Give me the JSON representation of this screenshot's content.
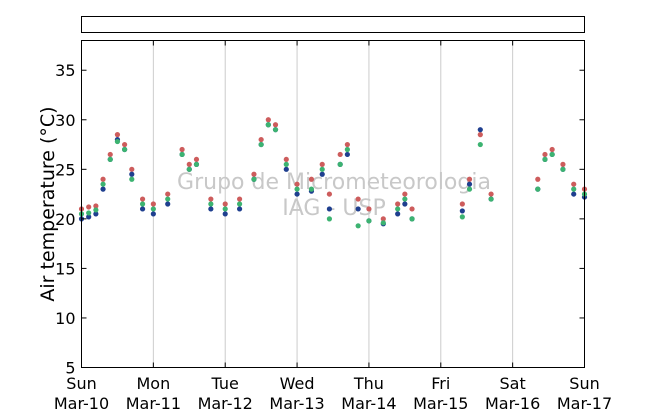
{
  "chart_data": {
    "type": "scatter",
    "ylabel": "Air temperature (°C)",
    "ylim": [
      5,
      38
    ],
    "yticks": [
      5,
      10,
      15,
      20,
      25,
      30,
      35
    ],
    "xlim": [
      0,
      7
    ],
    "xticks": [
      {
        "day": "Sun",
        "date": "Mar-10"
      },
      {
        "day": "Mon",
        "date": "Mar-11"
      },
      {
        "day": "Tue",
        "date": "Mar-12"
      },
      {
        "day": "Wed",
        "date": "Mar-13"
      },
      {
        "day": "Thu",
        "date": "Mar-14"
      },
      {
        "day": "Fri",
        "date": "Mar-15"
      },
      {
        "day": "Sat",
        "date": "Mar-16"
      },
      {
        "day": "Sun",
        "date": "Mar-17"
      }
    ],
    "vertical_grid": true,
    "watermark": [
      "Grupo de Micrometeorologia",
      "IAG - USP"
    ],
    "series": [
      {
        "color": "#cd5c5c",
        "values": [
          [
            0.0,
            21.0
          ],
          [
            0.1,
            21.2
          ],
          [
            0.2,
            21.3
          ],
          [
            0.3,
            24.0
          ],
          [
            0.4,
            26.5
          ],
          [
            0.5,
            28.5
          ],
          [
            0.6,
            27.5
          ],
          [
            0.7,
            25.0
          ],
          [
            0.85,
            22.0
          ],
          [
            1.0,
            21.5
          ],
          [
            1.2,
            22.5
          ],
          [
            1.4,
            27.0
          ],
          [
            1.5,
            25.5
          ],
          [
            1.6,
            26.0
          ],
          [
            1.8,
            22.0
          ],
          [
            2.0,
            21.5
          ],
          [
            2.2,
            22.0
          ],
          [
            2.4,
            24.5
          ],
          [
            2.5,
            28.0
          ],
          [
            2.6,
            30.0
          ],
          [
            2.7,
            29.5
          ],
          [
            2.85,
            26.0
          ],
          [
            3.0,
            23.5
          ],
          [
            3.2,
            24.0
          ],
          [
            3.35,
            25.5
          ],
          [
            3.45,
            22.5
          ],
          [
            3.6,
            26.5
          ],
          [
            3.7,
            27.5
          ],
          [
            3.85,
            22.0
          ],
          [
            4.0,
            21.0
          ],
          [
            4.2,
            20.0
          ],
          [
            4.4,
            21.5
          ],
          [
            4.5,
            22.5
          ],
          [
            4.6,
            21.0
          ],
          [
            5.3,
            21.5
          ],
          [
            5.4,
            24.0
          ],
          [
            5.55,
            28.5
          ],
          [
            5.7,
            22.5
          ],
          [
            6.35,
            24.0
          ],
          [
            6.45,
            26.5
          ],
          [
            6.55,
            27.0
          ],
          [
            6.7,
            25.5
          ],
          [
            6.85,
            23.5
          ],
          [
            7.0,
            23.0
          ]
        ]
      },
      {
        "color": "#1f3f8f",
        "values": [
          [
            0.0,
            20.0
          ],
          [
            0.1,
            20.2
          ],
          [
            0.2,
            20.5
          ],
          [
            0.3,
            23.0
          ],
          [
            0.4,
            26.0
          ],
          [
            0.5,
            28.0
          ],
          [
            0.6,
            27.0
          ],
          [
            0.7,
            24.5
          ],
          [
            0.85,
            21.0
          ],
          [
            1.0,
            20.5
          ],
          [
            1.2,
            21.5
          ],
          [
            1.4,
            26.5
          ],
          [
            1.5,
            25.0
          ],
          [
            1.6,
            25.5
          ],
          [
            1.8,
            21.0
          ],
          [
            2.0,
            20.5
          ],
          [
            2.2,
            21.0
          ],
          [
            2.4,
            24.0
          ],
          [
            2.5,
            27.5
          ],
          [
            2.6,
            29.5
          ],
          [
            2.7,
            29.0
          ],
          [
            2.85,
            25.0
          ],
          [
            3.0,
            22.5
          ],
          [
            3.2,
            22.8
          ],
          [
            3.35,
            24.5
          ],
          [
            3.45,
            21.0
          ],
          [
            3.6,
            25.5
          ],
          [
            3.7,
            26.5
          ],
          [
            3.85,
            21.0
          ],
          [
            4.0,
            19.8
          ],
          [
            4.2,
            19.5
          ],
          [
            4.4,
            20.5
          ],
          [
            4.5,
            21.5
          ],
          [
            4.6,
            20.0
          ],
          [
            5.3,
            20.8
          ],
          [
            5.4,
            23.5
          ],
          [
            5.55,
            29.0
          ],
          [
            5.7,
            22.0
          ],
          [
            6.35,
            23.0
          ],
          [
            6.45,
            26.0
          ],
          [
            6.55,
            26.5
          ],
          [
            6.7,
            25.0
          ],
          [
            6.85,
            22.5
          ],
          [
            7.0,
            22.2
          ]
        ]
      },
      {
        "color": "#3cb371",
        "values": [
          [
            0.0,
            20.5
          ],
          [
            0.1,
            20.6
          ],
          [
            0.2,
            20.9
          ],
          [
            0.3,
            23.5
          ],
          [
            0.4,
            26.0
          ],
          [
            0.5,
            27.8
          ],
          [
            0.6,
            27.0
          ],
          [
            0.7,
            24.0
          ],
          [
            0.85,
            21.5
          ],
          [
            1.0,
            21.0
          ],
          [
            1.2,
            22.0
          ],
          [
            1.4,
            26.5
          ],
          [
            1.5,
            25.0
          ],
          [
            1.6,
            25.5
          ],
          [
            1.8,
            21.5
          ],
          [
            2.0,
            21.0
          ],
          [
            2.2,
            21.5
          ],
          [
            2.4,
            24.0
          ],
          [
            2.5,
            27.5
          ],
          [
            2.6,
            29.5
          ],
          [
            2.7,
            29.0
          ],
          [
            2.85,
            25.5
          ],
          [
            3.0,
            23.0
          ],
          [
            3.2,
            23.0
          ],
          [
            3.35,
            25.0
          ],
          [
            3.45,
            20.0
          ],
          [
            3.6,
            25.5
          ],
          [
            3.7,
            27.0
          ],
          [
            3.85,
            19.3
          ],
          [
            4.0,
            19.8
          ],
          [
            4.2,
            19.6
          ],
          [
            4.4,
            21.0
          ],
          [
            4.5,
            22.0
          ],
          [
            4.6,
            20.0
          ],
          [
            5.3,
            20.2
          ],
          [
            5.4,
            23.0
          ],
          [
            5.55,
            27.5
          ],
          [
            5.7,
            22.0
          ],
          [
            6.35,
            23.0
          ],
          [
            6.45,
            26.0
          ],
          [
            6.55,
            26.5
          ],
          [
            6.7,
            25.0
          ],
          [
            6.85,
            23.0
          ],
          [
            7.0,
            22.5
          ]
        ]
      }
    ]
  }
}
